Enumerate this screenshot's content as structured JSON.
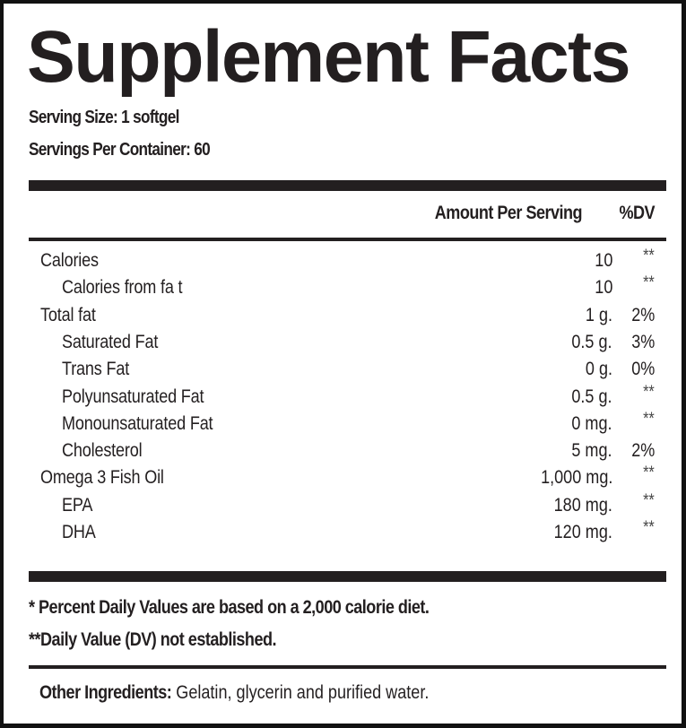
{
  "label": {
    "title": "Supplement Facts",
    "serving_size": "Serving Size: 1 softgel",
    "servings_per_container": "Servings Per Container: 60"
  },
  "table": {
    "header": {
      "amount": "Amount Per Serving",
      "dv": "%DV"
    },
    "rows": [
      {
        "name": "Calories",
        "amount": "10",
        "dv": "**",
        "indent": false
      },
      {
        "name": "Calories from fa t",
        "amount": "10",
        "dv": "**",
        "indent": true
      },
      {
        "name": "Total fat",
        "amount": "1 g.",
        "dv": "2%",
        "indent": false
      },
      {
        "name": "Saturated Fat",
        "amount": "0.5 g.",
        "dv": "3%",
        "indent": true
      },
      {
        "name": "Trans Fat",
        "amount": "0 g.",
        "dv": "0%",
        "indent": true
      },
      {
        "name": "Polyunsaturated Fat",
        "amount": "0.5 g.",
        "dv": "**",
        "indent": true
      },
      {
        "name": "Monounsaturated Fat",
        "amount": "0 mg.",
        "dv": "**",
        "indent": true
      },
      {
        "name": "Cholesterol",
        "amount": "5 mg.",
        "dv": "2%",
        "indent": true
      },
      {
        "name": "Omega 3 Fish Oil",
        "amount": "1,000 mg.",
        "dv": "**",
        "indent": false
      },
      {
        "name": "EPA",
        "amount": "180 mg.",
        "dv": "**",
        "indent": true
      },
      {
        "name": "DHA",
        "amount": "120 mg.",
        "dv": "**",
        "indent": true
      }
    ]
  },
  "footnotes": {
    "percent_dv": "* Percent Daily Values are based on a 2,000 calorie diet.",
    "not_established": "**Daily Value (DV) not established."
  },
  "ingredients": {
    "label": "Other Ingredients:",
    "text": " Gelatin, glycerin and purified water."
  },
  "colors": {
    "ink": "#231f20",
    "border": "#111111",
    "background": "#ffffff"
  }
}
